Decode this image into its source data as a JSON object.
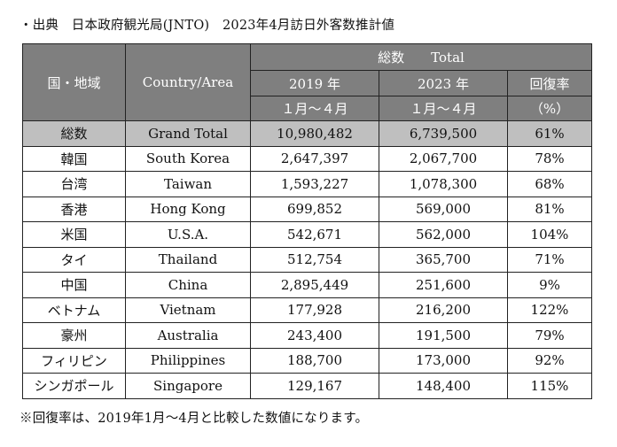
{
  "source_line": "・出典　日本政府観光局(JNTO)　2023年4月訪日外客数推計値",
  "header": {
    "region_jp": "国・地域",
    "country_en": "Country/Area",
    "total_label": "総数　　Total",
    "year_2019": "2019 年",
    "year_2023": "2023 年",
    "period_2019": "１月～４月",
    "period_2023": "１月～４月",
    "recovery_line1": "回復率",
    "recovery_line2": "（%）"
  },
  "total_row": {
    "jp": "総数",
    "en": "Grand Total",
    "v2019": "10,980,482",
    "v2023": "6,739,500",
    "rate": "61%"
  },
  "rows": [
    {
      "jp": "韓国",
      "en": "South Korea",
      "v2019": "2,647,397",
      "v2023": "2,067,700",
      "rate": "78%"
    },
    {
      "jp": "台湾",
      "en": "Taiwan",
      "v2019": "1,593,227",
      "v2023": "1,078,300",
      "rate": "68%"
    },
    {
      "jp": "香港",
      "en": "Hong Kong",
      "v2019": "699,852",
      "v2023": "569,000",
      "rate": "81%"
    },
    {
      "jp": "米国",
      "en": "U.S.A.",
      "v2019": "542,671",
      "v2023": "562,000",
      "rate": "104%"
    },
    {
      "jp": "タイ",
      "en": "Thailand",
      "v2019": "512,754",
      "v2023": "365,700",
      "rate": "71%"
    },
    {
      "jp": "中国",
      "en": "China",
      "v2019": "2,895,449",
      "v2023": "251,600",
      "rate": "9%"
    },
    {
      "jp": "ベトナム",
      "en": "Vietnam",
      "v2019": "177,928",
      "v2023": "216,200",
      "rate": "122%"
    },
    {
      "jp": "豪州",
      "en": "Australia",
      "v2019": "243,400",
      "v2023": "191,500",
      "rate": "79%"
    },
    {
      "jp": "フィリピン",
      "en": "Philippines",
      "v2019": "188,700",
      "v2023": "173,000",
      "rate": "92%"
    },
    {
      "jp": "シンガポール",
      "en": "Singapore",
      "v2019": "129,167",
      "v2023": "148,400",
      "rate": "115%"
    }
  ],
  "footnote": "※回復率は、2019年1月～4月と比較した数値になります。",
  "colors": {
    "header_bg": "#7f7f7f",
    "header_text": "#ffffff",
    "total_bg": "#bfbfbf",
    "border": "#222222"
  }
}
